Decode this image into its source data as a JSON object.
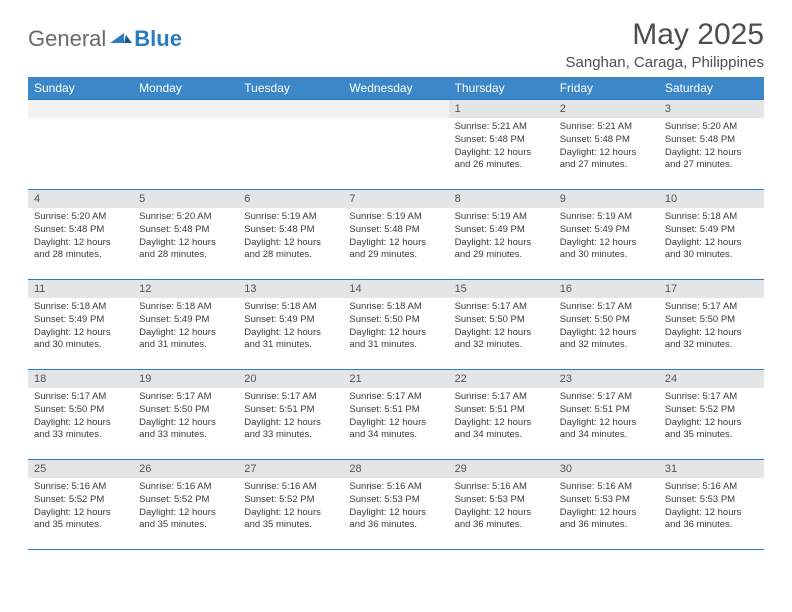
{
  "logo": {
    "text1": "General",
    "text2": "Blue"
  },
  "title": {
    "month": "May 2025",
    "location": "Sanghan, Caraga, Philippines"
  },
  "colors": {
    "header_bg": "#3b87c8",
    "header_text": "#ffffff",
    "daynum_bg": "#e3e5e7",
    "border": "#2b7bbf",
    "body_text": "#3a3a3a",
    "logo_gray": "#666a6e",
    "logo_blue": "#2b7bbf"
  },
  "weekdays": [
    "Sunday",
    "Monday",
    "Tuesday",
    "Wednesday",
    "Thursday",
    "Friday",
    "Saturday"
  ],
  "weeks": [
    [
      null,
      null,
      null,
      null,
      {
        "n": "1",
        "sr": "5:21 AM",
        "ss": "5:48 PM",
        "dl": "12 hours and 26 minutes."
      },
      {
        "n": "2",
        "sr": "5:21 AM",
        "ss": "5:48 PM",
        "dl": "12 hours and 27 minutes."
      },
      {
        "n": "3",
        "sr": "5:20 AM",
        "ss": "5:48 PM",
        "dl": "12 hours and 27 minutes."
      }
    ],
    [
      {
        "n": "4",
        "sr": "5:20 AM",
        "ss": "5:48 PM",
        "dl": "12 hours and 28 minutes."
      },
      {
        "n": "5",
        "sr": "5:20 AM",
        "ss": "5:48 PM",
        "dl": "12 hours and 28 minutes."
      },
      {
        "n": "6",
        "sr": "5:19 AM",
        "ss": "5:48 PM",
        "dl": "12 hours and 28 minutes."
      },
      {
        "n": "7",
        "sr": "5:19 AM",
        "ss": "5:48 PM",
        "dl": "12 hours and 29 minutes."
      },
      {
        "n": "8",
        "sr": "5:19 AM",
        "ss": "5:49 PM",
        "dl": "12 hours and 29 minutes."
      },
      {
        "n": "9",
        "sr": "5:19 AM",
        "ss": "5:49 PM",
        "dl": "12 hours and 30 minutes."
      },
      {
        "n": "10",
        "sr": "5:18 AM",
        "ss": "5:49 PM",
        "dl": "12 hours and 30 minutes."
      }
    ],
    [
      {
        "n": "11",
        "sr": "5:18 AM",
        "ss": "5:49 PM",
        "dl": "12 hours and 30 minutes."
      },
      {
        "n": "12",
        "sr": "5:18 AM",
        "ss": "5:49 PM",
        "dl": "12 hours and 31 minutes."
      },
      {
        "n": "13",
        "sr": "5:18 AM",
        "ss": "5:49 PM",
        "dl": "12 hours and 31 minutes."
      },
      {
        "n": "14",
        "sr": "5:18 AM",
        "ss": "5:50 PM",
        "dl": "12 hours and 31 minutes."
      },
      {
        "n": "15",
        "sr": "5:17 AM",
        "ss": "5:50 PM",
        "dl": "12 hours and 32 minutes."
      },
      {
        "n": "16",
        "sr": "5:17 AM",
        "ss": "5:50 PM",
        "dl": "12 hours and 32 minutes."
      },
      {
        "n": "17",
        "sr": "5:17 AM",
        "ss": "5:50 PM",
        "dl": "12 hours and 32 minutes."
      }
    ],
    [
      {
        "n": "18",
        "sr": "5:17 AM",
        "ss": "5:50 PM",
        "dl": "12 hours and 33 minutes."
      },
      {
        "n": "19",
        "sr": "5:17 AM",
        "ss": "5:50 PM",
        "dl": "12 hours and 33 minutes."
      },
      {
        "n": "20",
        "sr": "5:17 AM",
        "ss": "5:51 PM",
        "dl": "12 hours and 33 minutes."
      },
      {
        "n": "21",
        "sr": "5:17 AM",
        "ss": "5:51 PM",
        "dl": "12 hours and 34 minutes."
      },
      {
        "n": "22",
        "sr": "5:17 AM",
        "ss": "5:51 PM",
        "dl": "12 hours and 34 minutes."
      },
      {
        "n": "23",
        "sr": "5:17 AM",
        "ss": "5:51 PM",
        "dl": "12 hours and 34 minutes."
      },
      {
        "n": "24",
        "sr": "5:17 AM",
        "ss": "5:52 PM",
        "dl": "12 hours and 35 minutes."
      }
    ],
    [
      {
        "n": "25",
        "sr": "5:16 AM",
        "ss": "5:52 PM",
        "dl": "12 hours and 35 minutes."
      },
      {
        "n": "26",
        "sr": "5:16 AM",
        "ss": "5:52 PM",
        "dl": "12 hours and 35 minutes."
      },
      {
        "n": "27",
        "sr": "5:16 AM",
        "ss": "5:52 PM",
        "dl": "12 hours and 35 minutes."
      },
      {
        "n": "28",
        "sr": "5:16 AM",
        "ss": "5:53 PM",
        "dl": "12 hours and 36 minutes."
      },
      {
        "n": "29",
        "sr": "5:16 AM",
        "ss": "5:53 PM",
        "dl": "12 hours and 36 minutes."
      },
      {
        "n": "30",
        "sr": "5:16 AM",
        "ss": "5:53 PM",
        "dl": "12 hours and 36 minutes."
      },
      {
        "n": "31",
        "sr": "5:16 AM",
        "ss": "5:53 PM",
        "dl": "12 hours and 36 minutes."
      }
    ]
  ],
  "labels": {
    "sunrise": "Sunrise:",
    "sunset": "Sunset:",
    "daylight": "Daylight:"
  }
}
